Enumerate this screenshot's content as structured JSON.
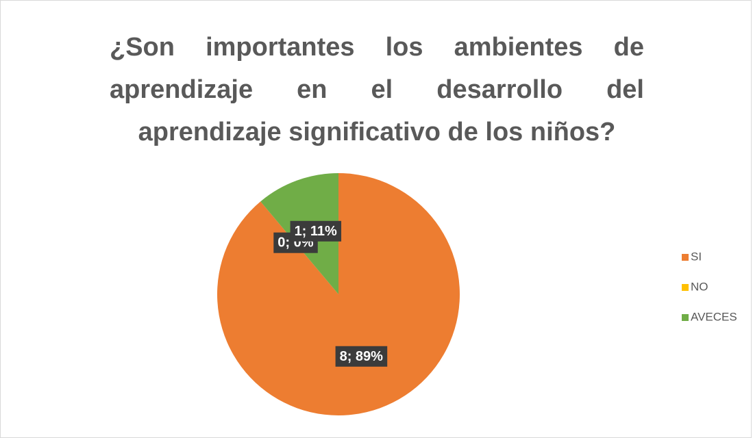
{
  "chart_data": {
    "type": "pie",
    "title": "¿Son importantes los ambientes de aprendizaje en el desarrollo del aprendizaje significativo de los niños?",
    "categories": [
      "SI",
      "NO",
      "AVECES"
    ],
    "values": [
      8,
      0,
      1
    ],
    "value_labels": [
      "8; 89%",
      "0; 0%",
      "1; 11%"
    ],
    "colors": [
      "#ED7D31",
      "#FFC000",
      "#70AD47"
    ],
    "legend": "right"
  }
}
